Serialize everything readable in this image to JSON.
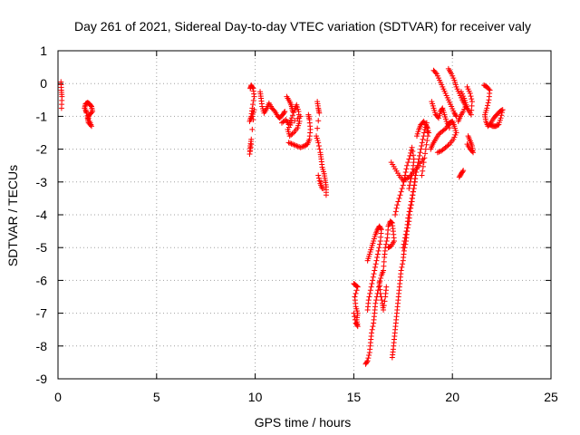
{
  "chart_data": {
    "type": "scatter",
    "title": "Day 261 of 2021, Sidereal Day-to-day VTEC variation (SDTVAR) for receiver valy",
    "xlabel": "GPS time / hours",
    "ylabel": "SDTVAR / TECUs",
    "xlim": [
      0,
      25
    ],
    "ylim": [
      -9,
      1
    ],
    "xticks": [
      0,
      5,
      10,
      15,
      20,
      25
    ],
    "yticks": [
      1,
      0,
      -1,
      -2,
      -3,
      -4,
      -5,
      -6,
      -7,
      -8,
      -9
    ],
    "xtick_labels": [
      "0",
      "5",
      "10",
      "15",
      "20",
      "25"
    ],
    "ytick_labels": [
      "1",
      "0",
      "-1",
      "-2",
      "-3",
      "-4",
      "-5",
      "-6",
      "-7",
      "-8",
      "-9"
    ],
    "grid": true,
    "marker": "+",
    "color": "#ff0000",
    "segments": [
      {
        "points": [
          [
            0.15,
            0.05
          ],
          [
            0.17,
            -0.2
          ],
          [
            0.2,
            -0.4
          ],
          [
            0.18,
            -0.75
          ]
        ]
      },
      {
        "points": [
          [
            1.35,
            -0.75
          ],
          [
            1.4,
            -0.62
          ],
          [
            1.5,
            -0.58
          ],
          [
            1.6,
            -0.62
          ],
          [
            1.7,
            -0.7
          ],
          [
            1.75,
            -0.85
          ],
          [
            1.6,
            -0.95
          ],
          [
            1.5,
            -1.05
          ],
          [
            1.55,
            -1.2
          ],
          [
            1.7,
            -1.3
          ],
          [
            1.6,
            -1.15
          ],
          [
            1.45,
            -0.9
          ],
          [
            1.4,
            -0.8
          ]
        ]
      },
      {
        "points": [
          [
            9.75,
            -0.15
          ],
          [
            9.8,
            -0.05
          ],
          [
            9.9,
            -0.15
          ],
          [
            9.95,
            -0.4
          ],
          [
            9.85,
            -0.75
          ],
          [
            9.8,
            -1.0
          ],
          [
            9.72,
            -1.15
          ],
          [
            9.85,
            -1.0
          ],
          [
            9.95,
            -0.8
          ],
          [
            9.8,
            -1.7
          ],
          [
            9.75,
            -1.9
          ],
          [
            9.72,
            -2.15
          ],
          [
            9.8,
            -1.85
          ]
        ]
      },
      {
        "points": [
          [
            10.25,
            -0.25
          ],
          [
            10.3,
            -0.45
          ],
          [
            10.35,
            -0.7
          ],
          [
            10.45,
            -0.9
          ],
          [
            10.6,
            -0.75
          ],
          [
            10.7,
            -0.6
          ],
          [
            10.85,
            -0.75
          ],
          [
            11.0,
            -0.85
          ],
          [
            11.15,
            -1.0
          ],
          [
            11.25,
            -1.05
          ],
          [
            11.4,
            -0.95
          ],
          [
            11.5,
            -0.85
          ]
        ]
      },
      {
        "points": [
          [
            11.35,
            -1.2
          ],
          [
            11.55,
            -1.1
          ],
          [
            11.7,
            -1.25
          ],
          [
            11.85,
            -1.05
          ],
          [
            12.0,
            -0.8
          ],
          [
            12.1,
            -0.65
          ],
          [
            12.2,
            -0.85
          ],
          [
            12.25,
            -1.15
          ],
          [
            12.15,
            -1.35
          ],
          [
            11.95,
            -1.5
          ],
          [
            11.75,
            -1.6
          ],
          [
            11.65,
            -1.4
          ],
          [
            11.85,
            -1.2
          ],
          [
            12.3,
            -1.0
          ]
        ]
      },
      {
        "points": [
          [
            11.7,
            -1.8
          ],
          [
            11.9,
            -1.85
          ],
          [
            12.1,
            -1.9
          ],
          [
            12.3,
            -1.95
          ],
          [
            12.5,
            -1.9
          ],
          [
            12.65,
            -1.85
          ],
          [
            12.75,
            -1.7
          ],
          [
            12.8,
            -1.4
          ],
          [
            12.75,
            -1.1
          ],
          [
            12.7,
            -0.95
          ]
        ]
      },
      {
        "points": [
          [
            11.6,
            -0.4
          ],
          [
            11.75,
            -0.55
          ],
          [
            11.85,
            -0.7
          ],
          [
            11.9,
            -0.85
          ]
        ]
      },
      {
        "points": [
          [
            13.15,
            -0.55
          ],
          [
            13.2,
            -0.75
          ],
          [
            13.25,
            -0.9
          ],
          [
            13.1,
            -1.6
          ],
          [
            13.2,
            -1.8
          ],
          [
            13.3,
            -2.1
          ],
          [
            13.35,
            -2.3
          ],
          [
            13.4,
            -2.55
          ],
          [
            13.5,
            -2.75
          ],
          [
            13.55,
            -2.95
          ],
          [
            13.6,
            -3.15
          ],
          [
            13.6,
            -3.4
          ],
          [
            13.2,
            -2.8
          ],
          [
            13.3,
            -3.05
          ],
          [
            13.4,
            -3.2
          ]
        ]
      },
      {
        "points": [
          [
            15.0,
            -6.1
          ],
          [
            15.1,
            -6.15
          ],
          [
            15.2,
            -6.2
          ],
          [
            15.05,
            -6.5
          ],
          [
            15.1,
            -6.8
          ],
          [
            15.2,
            -7.0
          ],
          [
            15.15,
            -7.2
          ],
          [
            15.2,
            -7.4
          ],
          [
            15.1,
            -7.3
          ],
          [
            15.0,
            -7.0
          ]
        ]
      },
      {
        "points": [
          [
            15.6,
            -8.55
          ],
          [
            15.7,
            -8.45
          ],
          [
            15.8,
            -8.2
          ],
          [
            15.85,
            -7.9
          ],
          [
            15.9,
            -7.6
          ],
          [
            16.0,
            -7.3
          ],
          [
            16.05,
            -7.0
          ],
          [
            16.1,
            -6.7
          ],
          [
            16.2,
            -6.4
          ],
          [
            16.3,
            -6.1
          ],
          [
            16.4,
            -5.85
          ],
          [
            16.5,
            -5.7
          ],
          [
            16.55,
            -5.3
          ],
          [
            16.6,
            -5.0
          ],
          [
            16.7,
            -4.7
          ],
          [
            16.75,
            -4.35
          ],
          [
            16.85,
            -4.2
          ],
          [
            16.95,
            -4.25
          ],
          [
            17.0,
            -4.5
          ],
          [
            17.05,
            -4.8
          ],
          [
            16.9,
            -4.95
          ],
          [
            16.75,
            -5.0
          ]
        ]
      },
      {
        "points": [
          [
            15.7,
            -5.4
          ],
          [
            15.8,
            -5.2
          ],
          [
            15.9,
            -5.0
          ],
          [
            16.0,
            -4.8
          ],
          [
            16.1,
            -4.6
          ],
          [
            16.2,
            -4.45
          ],
          [
            16.3,
            -4.35
          ],
          [
            16.4,
            -4.45
          ],
          [
            16.35,
            -4.8
          ],
          [
            16.25,
            -5.1
          ],
          [
            16.15,
            -5.4
          ],
          [
            16.05,
            -5.7
          ],
          [
            15.95,
            -6.0
          ],
          [
            15.85,
            -6.3
          ],
          [
            15.75,
            -6.6
          ],
          [
            15.7,
            -6.9
          ]
        ]
      },
      {
        "points": [
          [
            16.3,
            -6.05
          ],
          [
            16.35,
            -6.4
          ],
          [
            16.45,
            -6.7
          ],
          [
            16.5,
            -6.9
          ],
          [
            16.6,
            -6.5
          ],
          [
            16.65,
            -6.2
          ]
        ]
      },
      {
        "points": [
          [
            16.95,
            -8.35
          ],
          [
            17.0,
            -8.1
          ],
          [
            17.05,
            -7.8
          ],
          [
            17.1,
            -7.5
          ],
          [
            17.15,
            -7.2
          ],
          [
            17.2,
            -6.9
          ],
          [
            17.25,
            -6.6
          ],
          [
            17.3,
            -6.3
          ],
          [
            17.35,
            -6.0
          ],
          [
            17.4,
            -5.7
          ],
          [
            17.5,
            -5.4
          ],
          [
            17.55,
            -5.1
          ],
          [
            17.65,
            -4.8
          ],
          [
            17.7,
            -4.5
          ],
          [
            17.8,
            -4.2
          ],
          [
            17.85,
            -3.9
          ],
          [
            17.95,
            -3.6
          ],
          [
            18.0,
            -3.3
          ],
          [
            18.1,
            -3.0
          ],
          [
            18.15,
            -2.7
          ]
        ]
      },
      {
        "points": [
          [
            17.5,
            -5.0
          ],
          [
            17.6,
            -4.7
          ],
          [
            17.7,
            -4.4
          ],
          [
            17.75,
            -4.1
          ],
          [
            17.85,
            -3.8
          ],
          [
            17.95,
            -3.5
          ],
          [
            18.05,
            -3.2
          ],
          [
            18.1,
            -2.9
          ],
          [
            18.2,
            -2.6
          ],
          [
            18.3,
            -2.3
          ],
          [
            18.4,
            -2.0
          ],
          [
            18.5,
            -1.7
          ],
          [
            18.6,
            -1.4
          ],
          [
            18.7,
            -1.2
          ],
          [
            18.75,
            -1.6
          ],
          [
            18.65,
            -2.0
          ],
          [
            18.55,
            -2.4
          ],
          [
            18.45,
            -2.8
          ]
        ]
      },
      {
        "points": [
          [
            17.1,
            -4.0
          ],
          [
            17.2,
            -3.7
          ],
          [
            17.35,
            -3.4
          ],
          [
            17.5,
            -3.1
          ],
          [
            17.6,
            -2.8
          ],
          [
            17.7,
            -2.5
          ],
          [
            17.85,
            -2.2
          ],
          [
            17.95,
            -1.95
          ],
          [
            18.05,
            -2.3
          ],
          [
            18.0,
            -2.6
          ],
          [
            17.9,
            -2.9
          ],
          [
            17.8,
            -3.2
          ]
        ]
      },
      {
        "points": [
          [
            16.9,
            -2.4
          ],
          [
            17.1,
            -2.6
          ],
          [
            17.3,
            -2.8
          ],
          [
            17.5,
            -2.95
          ],
          [
            17.7,
            -2.9
          ],
          [
            17.9,
            -2.8
          ],
          [
            18.1,
            -2.65
          ],
          [
            18.3,
            -2.5
          ],
          [
            18.5,
            -2.3
          ]
        ]
      },
      {
        "points": [
          [
            18.2,
            -1.6
          ],
          [
            18.3,
            -1.4
          ],
          [
            18.4,
            -1.25
          ],
          [
            18.55,
            -1.15
          ],
          [
            18.7,
            -1.3
          ],
          [
            18.8,
            -1.5
          ]
        ]
      },
      {
        "points": [
          [
            18.95,
            -0.55
          ],
          [
            19.05,
            -0.75
          ],
          [
            19.15,
            -0.95
          ],
          [
            19.3,
            -1.05
          ],
          [
            19.4,
            -0.85
          ],
          [
            19.5,
            -0.75
          ],
          [
            19.6,
            -0.95
          ],
          [
            19.7,
            -1.15
          ],
          [
            19.85,
            -1.35
          ]
        ]
      },
      {
        "points": [
          [
            19.05,
            0.4
          ],
          [
            19.2,
            0.3
          ],
          [
            19.35,
            0.1
          ],
          [
            19.5,
            -0.1
          ],
          [
            19.65,
            -0.3
          ],
          [
            19.8,
            -0.5
          ],
          [
            19.95,
            -0.7
          ],
          [
            20.1,
            -0.9
          ],
          [
            20.2,
            -1.0
          ]
        ]
      },
      {
        "points": [
          [
            19.8,
            0.45
          ],
          [
            19.95,
            0.3
          ],
          [
            20.1,
            0.1
          ],
          [
            20.2,
            -0.1
          ],
          [
            20.35,
            -0.3
          ],
          [
            20.5,
            -0.5
          ],
          [
            20.65,
            -0.65
          ],
          [
            20.8,
            -0.8
          ],
          [
            20.95,
            -0.95
          ],
          [
            21.0,
            -0.55
          ],
          [
            20.9,
            -0.3
          ],
          [
            20.75,
            -0.1
          ]
        ]
      },
      {
        "points": [
          [
            18.9,
            -2.0
          ],
          [
            19.0,
            -1.85
          ],
          [
            19.15,
            -1.7
          ],
          [
            19.3,
            -1.55
          ],
          [
            19.5,
            -1.45
          ],
          [
            19.7,
            -1.35
          ],
          [
            19.85,
            -1.2
          ],
          [
            20.0,
            -1.15
          ],
          [
            20.1,
            -1.3
          ],
          [
            20.2,
            -1.5
          ],
          [
            20.05,
            -1.7
          ],
          [
            19.85,
            -1.85
          ],
          [
            19.65,
            -1.95
          ],
          [
            19.45,
            -2.05
          ],
          [
            19.25,
            -2.1
          ]
        ]
      },
      {
        "points": [
          [
            20.35,
            -2.85
          ],
          [
            20.45,
            -2.75
          ],
          [
            20.55,
            -2.65
          ]
        ]
      },
      {
        "points": [
          [
            20.8,
            -1.6
          ],
          [
            20.9,
            -1.75
          ],
          [
            21.0,
            -1.9
          ],
          [
            21.05,
            -2.1
          ],
          [
            20.9,
            -2.0
          ],
          [
            20.75,
            -1.85
          ]
        ]
      },
      {
        "points": [
          [
            21.6,
            -0.05
          ],
          [
            21.75,
            -0.1
          ],
          [
            21.9,
            -0.2
          ],
          [
            21.85,
            -0.5
          ],
          [
            21.75,
            -0.75
          ],
          [
            21.65,
            -0.95
          ],
          [
            21.7,
            -1.15
          ],
          [
            21.8,
            -1.3
          ],
          [
            21.95,
            -1.2
          ],
          [
            22.1,
            -1.05
          ],
          [
            22.25,
            -0.95
          ],
          [
            22.4,
            -0.85
          ],
          [
            22.55,
            -0.8
          ],
          [
            22.45,
            -1.05
          ],
          [
            22.35,
            -1.25
          ],
          [
            22.2,
            -1.3
          ],
          [
            22.05,
            -1.3
          ],
          [
            21.9,
            -1.25
          ]
        ]
      },
      {
        "points": [
          [
            20.45,
            -0.25
          ],
          [
            20.6,
            -0.45
          ],
          [
            20.7,
            -0.65
          ],
          [
            20.55,
            -0.85
          ],
          [
            20.4,
            -1.0
          ],
          [
            20.3,
            -1.15
          ]
        ]
      }
    ]
  }
}
